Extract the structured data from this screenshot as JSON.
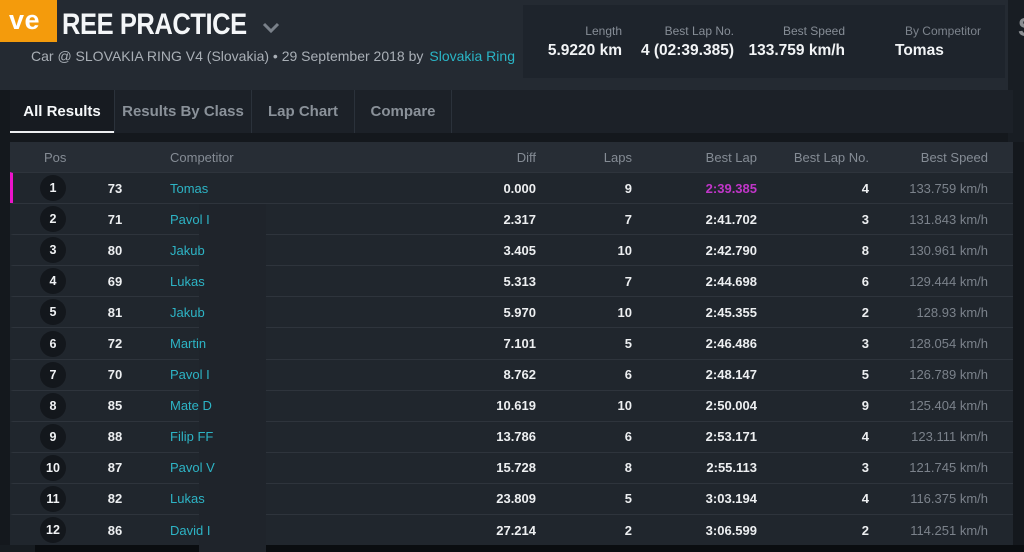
{
  "badge": {
    "label": "ve",
    "color": "#f49b0c"
  },
  "header": {
    "title": "REE PRACTICE",
    "subtitle_prefix": "Car @ SLOVAKIA RING V4 (Slovakia) • 29 September 2018 by",
    "subtitle_link": "Slovakia Ring",
    "stats": [
      {
        "label": "Length",
        "value": "5.9220 km"
      },
      {
        "label": "Best Lap No.",
        "value": "4 (02:39.385)"
      },
      {
        "label": "Best Speed",
        "value": "133.759 km/h"
      },
      {
        "label": "By Competitor",
        "value": "Tomas"
      }
    ]
  },
  "tabs": [
    {
      "label": "All Results",
      "active": true
    },
    {
      "label": "Results By Class",
      "active": false
    },
    {
      "label": "Lap Chart",
      "active": false
    },
    {
      "label": "Compare",
      "active": false
    }
  ],
  "edge_fragment": "S",
  "table": {
    "columns": [
      "Pos",
      "Competitor",
      "Diff",
      "Laps",
      "Best Lap",
      "Best Lap No.",
      "Best Speed"
    ],
    "rows": [
      {
        "pos": "1",
        "num": "73",
        "name": "Tomas",
        "diff": "0.000",
        "laps": "9",
        "best_lap": "2:39.385",
        "best_lap_no": "4",
        "best_speed": "133.759 km/h",
        "highlight": true
      },
      {
        "pos": "2",
        "num": "71",
        "name": "Pavol I",
        "diff": "2.317",
        "laps": "7",
        "best_lap": "2:41.702",
        "best_lap_no": "3",
        "best_speed": "131.843 km/h",
        "highlight": false
      },
      {
        "pos": "3",
        "num": "80",
        "name": "Jakub",
        "diff": "3.405",
        "laps": "10",
        "best_lap": "2:42.790",
        "best_lap_no": "8",
        "best_speed": "130.961 km/h",
        "highlight": false
      },
      {
        "pos": "4",
        "num": "69",
        "name": "Lukas",
        "diff": "5.313",
        "laps": "7",
        "best_lap": "2:44.698",
        "best_lap_no": "6",
        "best_speed": "129.444 km/h",
        "highlight": false
      },
      {
        "pos": "5",
        "num": "81",
        "name": "Jakub",
        "diff": "5.970",
        "laps": "10",
        "best_lap": "2:45.355",
        "best_lap_no": "2",
        "best_speed": "128.93 km/h",
        "highlight": false
      },
      {
        "pos": "6",
        "num": "72",
        "name": "Martin",
        "diff": "7.101",
        "laps": "5",
        "best_lap": "2:46.486",
        "best_lap_no": "3",
        "best_speed": "128.054 km/h",
        "highlight": false
      },
      {
        "pos": "7",
        "num": "70",
        "name": "Pavol I",
        "diff": "8.762",
        "laps": "6",
        "best_lap": "2:48.147",
        "best_lap_no": "5",
        "best_speed": "126.789 km/h",
        "highlight": false
      },
      {
        "pos": "8",
        "num": "85",
        "name": "Mate D",
        "diff": "10.619",
        "laps": "10",
        "best_lap": "2:50.004",
        "best_lap_no": "9",
        "best_speed": "125.404 km/h",
        "highlight": false
      },
      {
        "pos": "9",
        "num": "88",
        "name": "Filip FF",
        "diff": "13.786",
        "laps": "6",
        "best_lap": "2:53.171",
        "best_lap_no": "4",
        "best_speed": "123.111 km/h",
        "highlight": false
      },
      {
        "pos": "10",
        "num": "87",
        "name": "Pavol V",
        "diff": "15.728",
        "laps": "8",
        "best_lap": "2:55.113",
        "best_lap_no": "3",
        "best_speed": "121.745 km/h",
        "highlight": false
      },
      {
        "pos": "11",
        "num": "82",
        "name": "Lukas",
        "diff": "23.809",
        "laps": "5",
        "best_lap": "3:03.194",
        "best_lap_no": "4",
        "best_speed": "116.375 km/h",
        "highlight": false
      },
      {
        "pos": "12",
        "num": "86",
        "name": "David I",
        "diff": "27.214",
        "laps": "2",
        "best_lap": "3:06.599",
        "best_lap_no": "2",
        "best_speed": "114.251 km/h",
        "highlight": false
      }
    ]
  },
  "colors": {
    "accent_magenta": "#ec13ca",
    "accent_magenta_soft": "#c136c9",
    "accent_cyan": "#2db4c5",
    "badge_orange": "#f49b0c"
  }
}
